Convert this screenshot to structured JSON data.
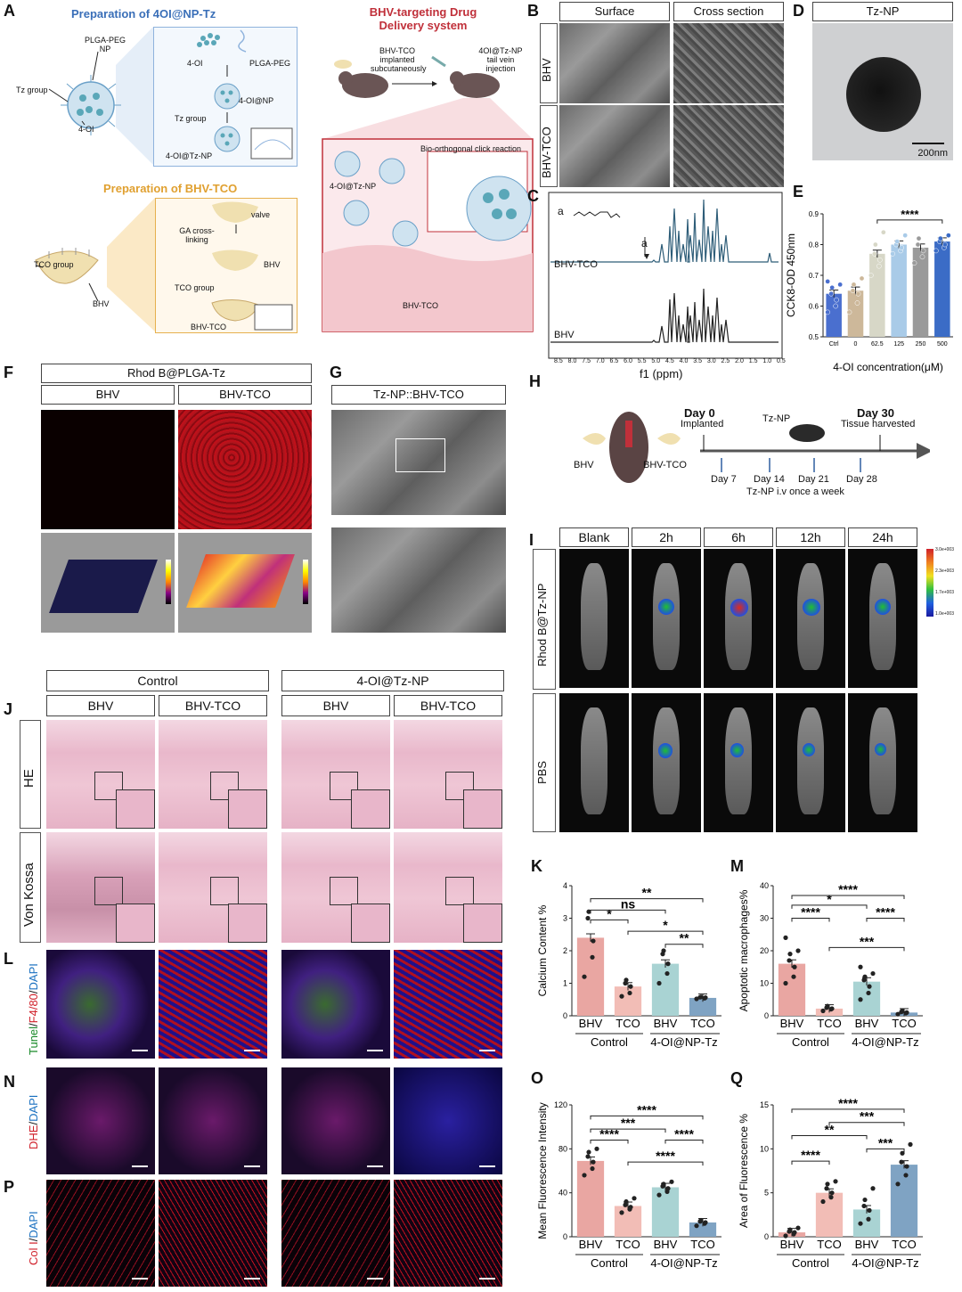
{
  "panels": {
    "A": "A",
    "B": "B",
    "C": "C",
    "D": "D",
    "E": "E",
    "F": "F",
    "G": "G",
    "H": "H",
    "I": "I",
    "J": "J",
    "K": "K",
    "L": "L",
    "M": "M",
    "N": "N",
    "O": "O",
    "P": "P",
    "Q": "Q"
  },
  "panelA": {
    "title_np": "Preparation of 4OI@NP-Tz",
    "title_bhv": "Preparation of BHV-TCO",
    "title_system": "BHV-targeting Drug Delivery system",
    "lbl_plga_peg_np": "PLGA-PEG NP",
    "lbl_tz_group": "Tz group",
    "lbl_4oi": "4-OI",
    "lbl_4oi_top": "4-OI",
    "lbl_plga_peg": "PLGA-PEG",
    "lbl_4oi_np": "4-OI@NP",
    "lbl_tz_group2": "Tz group",
    "lbl_4oi_tz_np": "4-OI@Tz-NP",
    "lbl_valve": "valve",
    "lbl_ga": "GA cross-linking",
    "lbl_bhv": "BHV",
    "lbl_tco_group": "TCO group",
    "lbl_tco_group2": "TCO group",
    "lbl_bhv_left": "BHV",
    "lbl_bhv_tco": "BHV-TCO",
    "lbl_implant": "BHV-TCO implanted subcutaneously",
    "lbl_inject": "4OI@Tz-NP tail vein injection",
    "lbl_click": "Bio-orthogonal click reaction",
    "lbl_4oi_tz_np2": "4-OI@Tz-NP",
    "lbl_bhv_tco2": "BHV-TCO"
  },
  "panelB": {
    "col1": "Surface",
    "col2": "Cross section",
    "row1": "BHV",
    "row2": "BHV-TCO"
  },
  "panelD": {
    "title": "Tz-NP",
    "scale": "200nm"
  },
  "panelC": {
    "label_top": "BHV-TCO",
    "label_bottom": "BHV",
    "peak_a": "a",
    "mol_a": "a",
    "xlabel": "f1 (ppm)",
    "ticks": [
      "8.5",
      "8.0",
      "7.5",
      "7.0",
      "6.5",
      "6.0",
      "5.5",
      "5.0",
      "4.5",
      "4.0",
      "3.5",
      "3.0",
      "2.5",
      "2.0",
      "1.5",
      "1.0",
      "0.5"
    ]
  },
  "panelF": {
    "title": "Rhod B@PLGA-Tz",
    "col1": "BHV",
    "col2": "BHV-TCO"
  },
  "panelG": {
    "title": "Tz-NP::BHV-TCO"
  },
  "panelH": {
    "day0": "Day 0",
    "implanted": "Implanted",
    "tznp": "Tz-NP",
    "day30": "Day 30",
    "harvested": "Tissue harvested",
    "bhv": "BHV",
    "bhv_tco": "BHV-TCO",
    "d7": "Day 7",
    "d14": "Day 14",
    "d21": "Day 21",
    "d28": "Day 28",
    "iv": "Tz-NP i.v once a week"
  },
  "panelI": {
    "cols": [
      "Blank",
      "2h",
      "6h",
      "12h",
      "24h"
    ],
    "row1": "Rhod B@Tz-NP",
    "row2": "PBS",
    "scale": [
      "3.0e+003",
      "2.3e+003",
      "1.7e+003",
      "1.0e+003"
    ]
  },
  "panelJ": {
    "group1": "Control",
    "group2": "4-OI@Tz-NP",
    "cols": [
      "BHV",
      "BHV-TCO",
      "BHV",
      "BHV-TCO"
    ],
    "row1": "HE",
    "row2": "Von Kossa"
  },
  "stain_labels": {
    "L": [
      {
        "t": "Tunel",
        "c": "#1a8a2a"
      },
      {
        "t": "/",
        "c": "#111"
      },
      {
        "t": "F4/80",
        "c": "#d0202a"
      },
      {
        "t": "/",
        "c": "#111"
      },
      {
        "t": "DAPI",
        "c": "#1a70c0"
      }
    ],
    "N": [
      {
        "t": "DHE",
        "c": "#d0202a"
      },
      {
        "t": "/",
        "c": "#111"
      },
      {
        "t": "DAPI",
        "c": "#1a70c0"
      }
    ],
    "P": [
      {
        "t": "Col I",
        "c": "#d0202a"
      },
      {
        "t": "/",
        "c": "#111"
      },
      {
        "t": "DAPI",
        "c": "#1a70c0"
      }
    ]
  },
  "chart_data": [
    {
      "id": "E",
      "type": "bar",
      "categories": [
        "Ctrl",
        "0",
        "62.5",
        "125",
        "250",
        "500"
      ],
      "values": [
        0.64,
        0.65,
        0.77,
        0.8,
        0.79,
        0.81
      ],
      "ylabel": "CCK8-OD 450nm",
      "xlabel": "4-OI concentration(μM)",
      "ylim": [
        0.5,
        0.9
      ],
      "yticks": [
        "0.5",
        "0.6",
        "0.7",
        "0.8",
        "0.9"
      ],
      "colors": [
        "#4a6fcf",
        "#cdb89a",
        "#d7d7c7",
        "#a9cbe8",
        "#9a9a9a",
        "#3b6cc6"
      ],
      "points": [
        [
          0.58,
          0.6,
          0.62,
          0.64,
          0.66,
          0.67,
          0.68
        ],
        [
          0.58,
          0.61,
          0.64,
          0.65,
          0.67,
          0.69
        ],
        [
          0.7,
          0.73,
          0.75,
          0.77,
          0.8,
          0.84
        ],
        [
          0.77,
          0.78,
          0.79,
          0.8,
          0.81,
          0.83
        ],
        [
          0.74,
          0.76,
          0.78,
          0.8,
          0.82
        ],
        [
          0.78,
          0.79,
          0.8,
          0.81,
          0.82,
          0.83
        ]
      ],
      "sig": [
        {
          "from": 2,
          "to": 5,
          "text": "****",
          "level": 0.88
        }
      ]
    },
    {
      "id": "K",
      "type": "bar",
      "categories": [
        "BHV",
        "TCO",
        "BHV",
        "TCO"
      ],
      "groups": [
        "Control",
        "4-OI@NP-Tz"
      ],
      "values": [
        2.4,
        0.9,
        1.6,
        0.55
      ],
      "ylim": [
        0,
        4
      ],
      "yticks": [
        "0",
        "1",
        "2",
        "3",
        "4"
      ],
      "ylabel": "Calcium Content %",
      "colors": [
        "#e9a6a2",
        "#f2bdb6",
        "#a9d3d3",
        "#7fa3c3"
      ],
      "points": [
        [
          1.2,
          1.8,
          2.3,
          3.0,
          3.2
        ],
        [
          0.6,
          0.7,
          0.9,
          1.0,
          1.1
        ],
        [
          1.0,
          1.3,
          1.6,
          1.9,
          2.0
        ],
        [
          0.52,
          0.54,
          0.56,
          0.57,
          0.58
        ]
      ],
      "sig": [
        {
          "from": 0,
          "to": 3,
          "text": "**",
          "level": 3.6
        },
        {
          "from": 0,
          "to": 2,
          "text": "ns",
          "level": 3.25
        },
        {
          "from": 0,
          "to": 1,
          "text": "*",
          "level": 2.95
        },
        {
          "from": 1,
          "to": 3,
          "text": "*",
          "level": 2.6
        },
        {
          "from": 2,
          "to": 3,
          "text": "**",
          "level": 2.2
        }
      ]
    },
    {
      "id": "M",
      "type": "bar",
      "categories": [
        "BHV",
        "TCO",
        "BHV",
        "TCO"
      ],
      "groups": [
        "Control",
        "4-OI@NP-Tz"
      ],
      "values": [
        16,
        2.2,
        10.5,
        1.0
      ],
      "ylim": [
        0,
        40
      ],
      "yticks": [
        "0",
        "10",
        "20",
        "30",
        "40"
      ],
      "ylabel": "Apoptotic macrophages%",
      "colors": [
        "#e9a6a2",
        "#f2bdb6",
        "#a9d3d3",
        "#7fa3c3"
      ],
      "points": [
        [
          10,
          12,
          15,
          17,
          19,
          20,
          24
        ],
        [
          1.5,
          2,
          2.2,
          2.5,
          3
        ],
        [
          5,
          7,
          9,
          11,
          12,
          13,
          15
        ],
        [
          0.5,
          0.8,
          1,
          1.2,
          1.5
        ]
      ],
      "sig": [
        {
          "from": 0,
          "to": 3,
          "text": "****",
          "level": 37
        },
        {
          "from": 0,
          "to": 2,
          "text": "*",
          "level": 34
        },
        {
          "from": 0,
          "to": 1,
          "text": "****",
          "level": 30
        },
        {
          "from": 2,
          "to": 3,
          "text": "****",
          "level": 30
        },
        {
          "from": 1,
          "to": 3,
          "text": "***",
          "level": 21
        }
      ]
    },
    {
      "id": "O",
      "type": "bar",
      "categories": [
        "BHV",
        "TCO",
        "BHV",
        "TCO"
      ],
      "groups": [
        "Control",
        "4-OI@NP-Tz"
      ],
      "values": [
        69,
        28,
        45,
        13
      ],
      "ylim": [
        0,
        120
      ],
      "yticks": [
        "0",
        "40",
        "80",
        "120"
      ],
      "ylabel": "Mean Fluorescence Intensity",
      "colors": [
        "#e9a6a2",
        "#f2bdb6",
        "#a9d3d3",
        "#7fa3c3"
      ],
      "points": [
        [
          56,
          62,
          68,
          73,
          77,
          80
        ],
        [
          22,
          25,
          27,
          29,
          32,
          35
        ],
        [
          38,
          41,
          44,
          46,
          48,
          50
        ],
        [
          10,
          12,
          13,
          14,
          15
        ]
      ],
      "sig": [
        {
          "from": 0,
          "to": 3,
          "text": "****",
          "level": 110
        },
        {
          "from": 0,
          "to": 2,
          "text": "***",
          "level": 98
        },
        {
          "from": 0,
          "to": 1,
          "text": "****",
          "level": 88
        },
        {
          "from": 2,
          "to": 3,
          "text": "****",
          "level": 88
        },
        {
          "from": 1,
          "to": 3,
          "text": "****",
          "level": 68
        }
      ]
    },
    {
      "id": "Q",
      "type": "bar",
      "categories": [
        "BHV",
        "TCO",
        "BHV",
        "TCO"
      ],
      "groups": [
        "Control",
        "4-OI@NP-Tz"
      ],
      "values": [
        0.5,
        5.0,
        3.1,
        8.2
      ],
      "ylim": [
        0,
        15
      ],
      "yticks": [
        "0",
        "5",
        "10",
        "15"
      ],
      "ylabel": "Area of Fluorescence %",
      "colors": [
        "#e9a6a2",
        "#f2bdb6",
        "#a9d3d3",
        "#7fa3c3"
      ],
      "points": [
        [
          0.1,
          0.3,
          0.5,
          0.6,
          0.8,
          1.0
        ],
        [
          4.0,
          4.5,
          5.0,
          5.5,
          6.0,
          6.3
        ],
        [
          1.5,
          2.0,
          3.0,
          3.5,
          4.2,
          5.5
        ],
        [
          6.0,
          7.0,
          8.0,
          8.5,
          9.5,
          10.5
        ]
      ],
      "sig": [
        {
          "from": 0,
          "to": 3,
          "text": "****",
          "level": 14.5
        },
        {
          "from": 1,
          "to": 3,
          "text": "***",
          "level": 13
        },
        {
          "from": 0,
          "to": 2,
          "text": "**",
          "level": 11.5
        },
        {
          "from": 2,
          "to": 3,
          "text": "***",
          "level": 10
        },
        {
          "from": 0,
          "to": 1,
          "text": "****",
          "level": 8.6
        }
      ]
    }
  ]
}
